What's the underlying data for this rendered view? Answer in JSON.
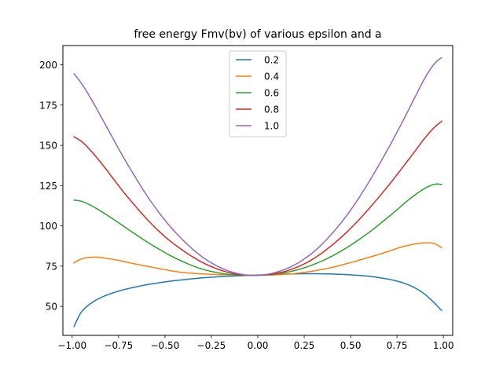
{
  "chart_data": {
    "type": "line",
    "title": "free energy Fmv(bv) of various epsilon and a",
    "xlabel": "",
    "ylabel": "",
    "xlim": [
      -1.05,
      1.05
    ],
    "ylim": [
      32,
      212
    ],
    "xticks": [
      -1.0,
      -0.75,
      -0.5,
      -0.25,
      0.0,
      0.25,
      0.5,
      0.75,
      1.0
    ],
    "xtick_labels": [
      "−1.00",
      "−0.75",
      "−0.50",
      "−0.25",
      "0.00",
      "0.25",
      "0.50",
      "0.75",
      "1.00"
    ],
    "yticks": [
      50,
      75,
      100,
      125,
      150,
      175,
      200
    ],
    "ytick_labels": [
      "50",
      "75",
      "100",
      "125",
      "150",
      "175",
      "200"
    ],
    "grid": false,
    "legend_position": "top-center",
    "x": [
      -0.99,
      -0.95,
      -0.9,
      -0.85,
      -0.8,
      -0.75,
      -0.7,
      -0.6,
      -0.5,
      -0.4,
      -0.3,
      -0.2,
      -0.1,
      0.0,
      0.1,
      0.2,
      0.3,
      0.4,
      0.5,
      0.6,
      0.7,
      0.75,
      0.8,
      0.85,
      0.9,
      0.95,
      0.99
    ],
    "series": [
      {
        "name": "0.2",
        "color": "#1f77b4",
        "values": [
          37.5,
          46.5,
          51.8,
          55.2,
          57.6,
          59.5,
          61.0,
          63.4,
          65.2,
          66.6,
          67.7,
          68.5,
          69.0,
          69.5,
          69.9,
          70.2,
          70.3,
          70.1,
          69.6,
          68.7,
          67.0,
          65.7,
          63.9,
          61.3,
          57.5,
          52.3,
          47.5
        ]
      },
      {
        "name": "0.4",
        "color": "#ff7f0e",
        "values": [
          77.0,
          79.5,
          80.5,
          80.4,
          79.6,
          78.6,
          77.3,
          75.0,
          72.8,
          71.0,
          70.2,
          69.7,
          69.5,
          69.4,
          69.6,
          70.4,
          72.0,
          74.2,
          77.2,
          80.5,
          84.0,
          86.0,
          87.6,
          88.8,
          89.4,
          89.0,
          86.5
        ]
      },
      {
        "name": "0.6",
        "color": "#2ca02c",
        "values": [
          116.0,
          115.3,
          112.8,
          109.5,
          105.8,
          102.0,
          98.0,
          90.3,
          83.4,
          77.6,
          73.2,
          70.6,
          69.4,
          69.3,
          70.2,
          72.3,
          76.0,
          81.2,
          88.0,
          96.0,
          105.2,
          110.0,
          115.0,
          119.5,
          123.3,
          125.8,
          125.8
        ]
      },
      {
        "name": "0.8",
        "color": "#d62728",
        "values": [
          155.3,
          152.5,
          146.8,
          140.0,
          132.6,
          125.0,
          117.8,
          104.5,
          93.3,
          84.5,
          77.4,
          72.5,
          69.8,
          69.3,
          70.5,
          73.8,
          79.6,
          88.0,
          98.4,
          110.8,
          124.5,
          131.8,
          139.3,
          146.9,
          154.6,
          161.0,
          165.0
        ]
      },
      {
        "name": "1.0",
        "color": "#9467bd",
        "values": [
          194.5,
          188.5,
          179.3,
          169.0,
          158.5,
          148.0,
          138.0,
          119.3,
          103.5,
          90.8,
          80.8,
          74.0,
          70.2,
          69.3,
          71.2,
          75.9,
          83.8,
          95.2,
          109.8,
          127.5,
          147.5,
          158.2,
          169.3,
          180.7,
          191.8,
          200.5,
          204.5
        ]
      }
    ]
  }
}
